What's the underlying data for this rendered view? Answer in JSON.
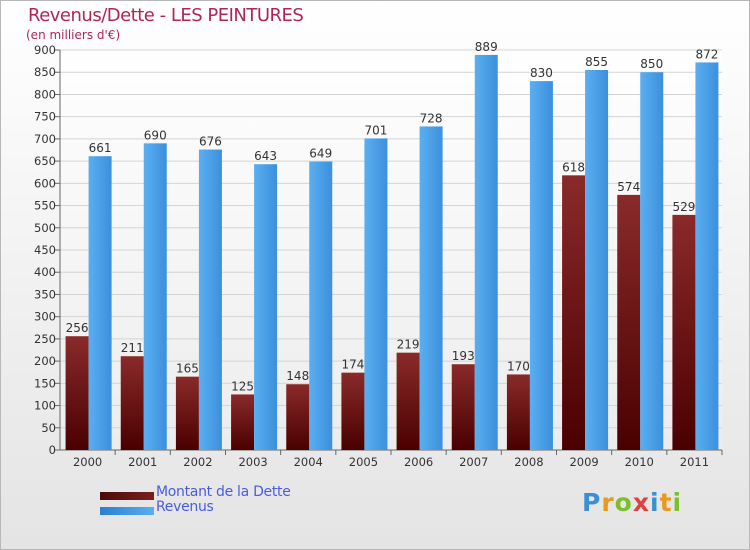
{
  "chart_data": {
    "type": "bar",
    "title": "Revenus/Dette - LES PEINTURES",
    "ylabel": "(en milliers d'€)",
    "xlabel": "",
    "categories": [
      "2000",
      "2001",
      "2002",
      "2003",
      "2004",
      "2005",
      "2006",
      "2007",
      "2008",
      "2009",
      "2010",
      "2011"
    ],
    "series": [
      {
        "name": "Montant de la Dette",
        "color": "#7a1f1f",
        "values": [
          256,
          211,
          165,
          125,
          148,
          174,
          219,
          193,
          170,
          618,
          574,
          529
        ]
      },
      {
        "name": "Revenus",
        "color": "#4da3e8",
        "values": [
          661,
          690,
          676,
          643,
          649,
          701,
          728,
          889,
          830,
          855,
          850,
          872
        ]
      }
    ],
    "ylim": [
      0,
      900
    ],
    "yticks": [
      0,
      50,
      100,
      150,
      200,
      250,
      300,
      350,
      400,
      450,
      500,
      550,
      600,
      650,
      700,
      750,
      800,
      850,
      900
    ],
    "grid": true,
    "legend": "bottom-left"
  },
  "logo": {
    "letters": [
      "P",
      "r",
      "o",
      "x",
      "i",
      "t",
      "i"
    ],
    "colors": [
      "#3a8fd6",
      "#e89a1c",
      "#7bbf2a",
      "#e04040",
      "#3a8fd6",
      "#e89a1c",
      "#7bbf2a"
    ]
  }
}
